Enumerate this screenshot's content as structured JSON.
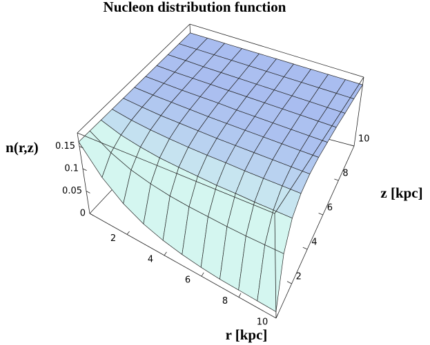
{
  "chart_data": {
    "type": "surface",
    "title": "Nucleon distribution function",
    "x_label": "r [kpc]",
    "y_label": "z [kpc]",
    "z_label": "n(r,z)",
    "x": [
      0,
      1,
      2,
      3,
      4,
      5,
      6,
      7,
      8,
      9,
      10
    ],
    "y": [
      0,
      1,
      2,
      3,
      4,
      5,
      6,
      7,
      8,
      9,
      10
    ],
    "values": [
      [
        0.16,
        0.101,
        0.065,
        0.043,
        0.03,
        0.022,
        0.017,
        0.014,
        0.013,
        0.012,
        0.011
      ],
      [
        0.16,
        0.13,
        0.111,
        0.1,
        0.093,
        0.089,
        0.087,
        0.085,
        0.084,
        0.084,
        0.084
      ],
      [
        0.16,
        0.144,
        0.135,
        0.129,
        0.126,
        0.124,
        0.122,
        0.122,
        0.121,
        0.121,
        0.121
      ],
      [
        0.16,
        0.152,
        0.147,
        0.144,
        0.142,
        0.141,
        0.141,
        0.14,
        0.14,
        0.14,
        0.14
      ],
      [
        0.16,
        0.156,
        0.153,
        0.152,
        0.151,
        0.15,
        0.15,
        0.15,
        0.15,
        0.15,
        0.15
      ],
      [
        0.16,
        0.158,
        0.157,
        0.156,
        0.155,
        0.155,
        0.155,
        0.155,
        0.155,
        0.155,
        0.155
      ],
      [
        0.16,
        0.159,
        0.158,
        0.158,
        0.158,
        0.157,
        0.157,
        0.157,
        0.157,
        0.157,
        0.157
      ],
      [
        0.16,
        0.159,
        0.159,
        0.159,
        0.159,
        0.159,
        0.159,
        0.159,
        0.159,
        0.159,
        0.159
      ],
      [
        0.16,
        0.16,
        0.159,
        0.159,
        0.159,
        0.159,
        0.159,
        0.159,
        0.159,
        0.159,
        0.159
      ],
      [
        0.16,
        0.16,
        0.16,
        0.16,
        0.16,
        0.16,
        0.16,
        0.16,
        0.16,
        0.16,
        0.16
      ],
      [
        0.16,
        0.16,
        0.16,
        0.16,
        0.16,
        0.16,
        0.16,
        0.16,
        0.16,
        0.16,
        0.16
      ]
    ],
    "xlim": [
      0,
      10
    ],
    "ylim": [
      0,
      10
    ],
    "zlim": [
      0,
      0.18
    ],
    "xticks": [
      2,
      4,
      6,
      8,
      10
    ],
    "yticks": [
      2,
      4,
      6,
      8,
      10
    ],
    "zticks": [
      0,
      0.05,
      0.1,
      0.15
    ],
    "color": "#a9bdf0",
    "highlight_color": "#d4f6f0"
  }
}
